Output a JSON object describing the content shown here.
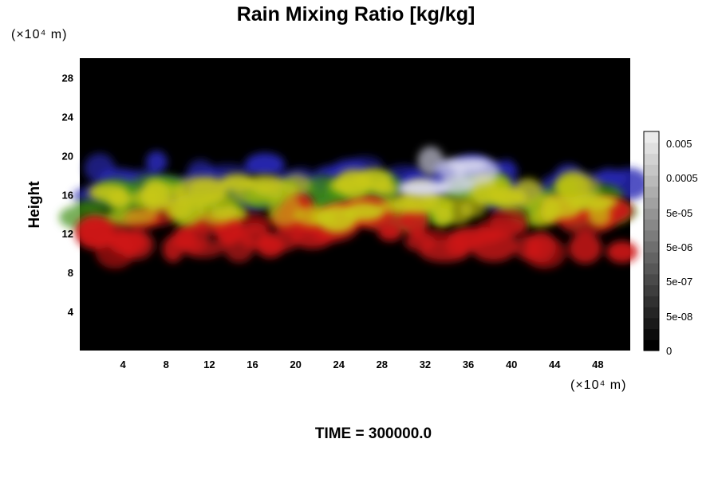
{
  "chart_data": {
    "type": "heatmap",
    "title": "Rain Mixing Ratio [kg/kg]",
    "xlabel": "",
    "ylabel": "Height",
    "x_unit": "(×10⁴ m)",
    "y_unit": "(×10⁴ m)",
    "xlim": [
      0,
      51
    ],
    "ylim": [
      0,
      30
    ],
    "x_ticks": [
      4,
      8,
      12,
      16,
      20,
      24,
      28,
      32,
      36,
      40,
      44,
      48
    ],
    "y_ticks": [
      4,
      8,
      12,
      16,
      20,
      24,
      28
    ],
    "colorbar": {
      "tick_labels": [
        "0.005",
        "0.0005",
        "5e-05",
        "5e-06",
        "5e-07",
        "5e-08",
        "0"
      ],
      "num_levels": 20,
      "position": "right"
    },
    "background_color": "#000000",
    "layer_colors": {
      "red": "#d01818",
      "yellow": "#c8c814",
      "green": "#3c8c14",
      "blue": "#2828b4",
      "white": "#dcdcf0"
    },
    "features": [
      {
        "color": "blue",
        "x": [
          0,
          51
        ],
        "y": [
          15.5,
          19.5
        ]
      },
      {
        "color": "green",
        "x": [
          0,
          51
        ],
        "y": [
          13.5,
          17
        ]
      },
      {
        "color": "yellow",
        "x": [
          2,
          49
        ],
        "y": [
          13.5,
          17.5
        ]
      },
      {
        "color": "red",
        "x": [
          0.5,
          51
        ],
        "y": [
          10,
          14.5
        ]
      },
      {
        "color": "white",
        "x": [
          31.5,
          37.5
        ],
        "y": [
          16,
          19.5
        ]
      }
    ]
  },
  "footer": {
    "time_label": "TIME = 300000.0"
  }
}
